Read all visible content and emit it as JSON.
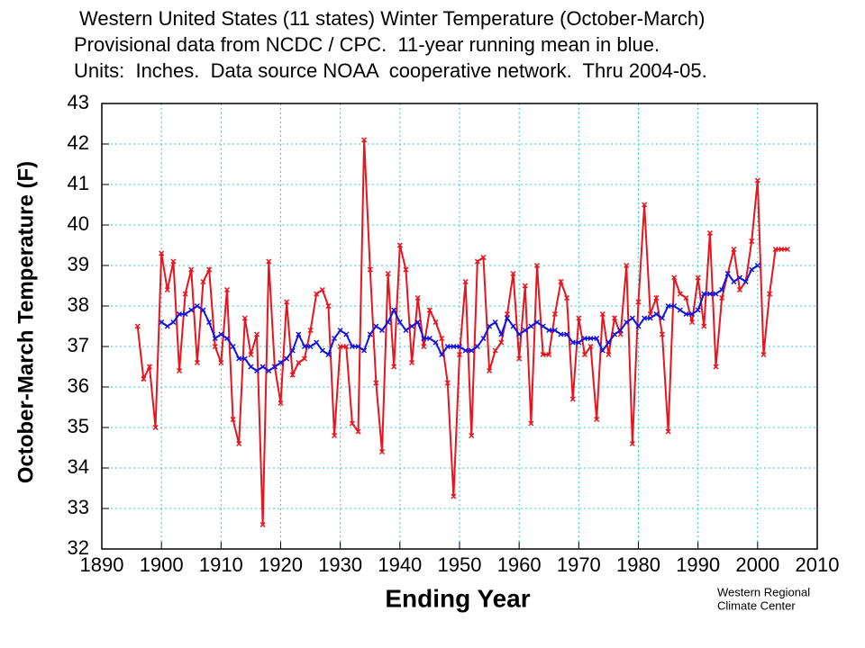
{
  "chart_data": {
    "type": "line",
    "title": "Western United States (11 states) Winter Temperature (October-March)",
    "subtitle": [
      "Provisional data from NCDC / CPC.  11-year running mean in blue.",
      "Units:  Inches.  Data source NOAA  cooperative network.  Thru 2004-05."
    ],
    "x_label": "Ending Year",
    "y_label": "October-March Temperature (F)",
    "source": [
      "Western Regional",
      "Climate Center"
    ],
    "xlim": [
      1890,
      2010
    ],
    "xticks": [
      1890,
      1900,
      1910,
      1920,
      1930,
      1940,
      1950,
      1960,
      1970,
      1980,
      1990,
      2000,
      2010
    ],
    "ylim": [
      32,
      43
    ],
    "yticks": [
      32,
      33,
      34,
      35,
      36,
      37,
      38,
      39,
      40,
      41,
      42,
      43
    ],
    "grid": true,
    "grid_color": "#33cccc",
    "series": [
      {
        "color": "#e8141e",
        "x": [
          1896,
          1897,
          1898,
          1899,
          1900,
          1901,
          1902,
          1903,
          1904,
          1905,
          1906,
          1907,
          1908,
          1909,
          1910,
          1911,
          1912,
          1913,
          1914,
          1915,
          1916,
          1917,
          1918,
          1919,
          1920,
          1921,
          1922,
          1923,
          1924,
          1925,
          1926,
          1927,
          1928,
          1929,
          1930,
          1931,
          1932,
          1933,
          1934,
          1935,
          1936,
          1937,
          1938,
          1939,
          1940,
          1941,
          1942,
          1943,
          1944,
          1945,
          1946,
          1947,
          1948,
          1949,
          1950,
          1951,
          1952,
          1953,
          1954,
          1955,
          1956,
          1957,
          1958,
          1959,
          1960,
          1961,
          1962,
          1963,
          1964,
          1965,
          1966,
          1967,
          1968,
          1969,
          1970,
          1971,
          1972,
          1973,
          1974,
          1975,
          1976,
          1977,
          1978,
          1979,
          1980,
          1981,
          1982,
          1983,
          1984,
          1985,
          1986,
          1987,
          1988,
          1989,
          1990,
          1991,
          1992,
          1993,
          1994,
          1995,
          1996,
          1997,
          1998,
          1999,
          2000,
          2001,
          2002,
          2003,
          2004,
          2005
        ],
        "values": [
          37.5,
          36.2,
          36.5,
          35.0,
          39.3,
          38.4,
          39.1,
          36.4,
          38.3,
          38.9,
          36.6,
          38.6,
          38.9,
          37.0,
          36.6,
          38.4,
          35.2,
          34.6,
          37.7,
          36.8,
          37.3,
          32.6,
          39.1,
          36.5,
          35.6,
          38.1,
          36.3,
          36.6,
          36.7,
          37.4,
          38.3,
          38.4,
          38.0,
          34.8,
          37.0,
          37.0,
          35.1,
          34.9,
          42.1,
          38.9,
          36.1,
          34.4,
          38.8,
          36.5,
          39.5,
          38.9,
          36.6,
          38.2,
          37.0,
          37.9,
          37.6,
          37.2,
          36.1,
          33.3,
          36.8,
          38.6,
          34.8,
          39.1,
          39.2,
          36.4,
          36.9,
          37.1,
          37.8,
          38.8,
          36.7,
          38.5,
          35.1,
          39.0,
          36.8,
          36.8,
          37.8,
          38.6,
          38.2,
          35.7,
          37.7,
          36.8,
          37.0,
          35.2,
          37.8,
          36.8,
          37.7,
          37.3,
          39.0,
          34.6,
          38.1,
          40.5,
          37.8,
          38.2,
          37.3,
          34.9,
          38.7,
          38.3,
          38.2,
          37.6,
          38.7,
          37.5,
          39.8,
          36.5,
          38.2,
          38.8,
          39.4,
          38.4,
          38.6,
          39.6,
          41.1,
          36.8,
          38.3,
          39.4,
          39.4,
          39.4
        ]
      },
      {
        "color": "#1414e0",
        "x": [
          1900,
          1901,
          1902,
          1903,
          1904,
          1905,
          1906,
          1907,
          1908,
          1909,
          1910,
          1911,
          1912,
          1913,
          1914,
          1915,
          1916,
          1917,
          1918,
          1919,
          1920,
          1921,
          1922,
          1923,
          1924,
          1925,
          1926,
          1927,
          1928,
          1929,
          1930,
          1931,
          1932,
          1933,
          1934,
          1935,
          1936,
          1937,
          1938,
          1939,
          1940,
          1941,
          1942,
          1943,
          1944,
          1945,
          1946,
          1947,
          1948,
          1949,
          1950,
          1951,
          1952,
          1953,
          1954,
          1955,
          1956,
          1957,
          1958,
          1959,
          1960,
          1961,
          1962,
          1963,
          1964,
          1965,
          1966,
          1967,
          1968,
          1969,
          1970,
          1971,
          1972,
          1973,
          1974,
          1975,
          1976,
          1977,
          1978,
          1979,
          1980,
          1981,
          1982,
          1983,
          1984,
          1985,
          1986,
          1987,
          1988,
          1989,
          1990,
          1991,
          1992,
          1993,
          1994,
          1995,
          1996,
          1997,
          1998,
          1999,
          2000
        ],
        "values": [
          37.6,
          37.5,
          37.6,
          37.8,
          37.8,
          37.9,
          38.0,
          37.9,
          37.6,
          37.2,
          37.3,
          37.2,
          37.0,
          36.7,
          36.7,
          36.5,
          36.4,
          36.5,
          36.4,
          36.5,
          36.6,
          36.7,
          36.9,
          37.3,
          37.0,
          37.0,
          37.1,
          36.9,
          36.8,
          37.2,
          37.4,
          37.3,
          37.0,
          37.0,
          36.9,
          37.3,
          37.5,
          37.4,
          37.6,
          37.9,
          37.6,
          37.4,
          37.5,
          37.6,
          37.2,
          37.2,
          37.1,
          36.8,
          37.0,
          37.0,
          37.0,
          36.9,
          36.9,
          37.0,
          37.2,
          37.5,
          37.6,
          37.3,
          37.7,
          37.5,
          37.3,
          37.4,
          37.5,
          37.6,
          37.5,
          37.4,
          37.4,
          37.3,
          37.3,
          37.1,
          37.1,
          37.2,
          37.2,
          37.2,
          36.9,
          37.1,
          37.3,
          37.4,
          37.6,
          37.7,
          37.5,
          37.7,
          37.7,
          37.8,
          37.7,
          38.0,
          38.0,
          37.9,
          37.8,
          37.8,
          37.9,
          38.3,
          38.3,
          38.3,
          38.4,
          38.8,
          38.6,
          38.7,
          38.6,
          38.9,
          39.0
        ]
      }
    ]
  }
}
